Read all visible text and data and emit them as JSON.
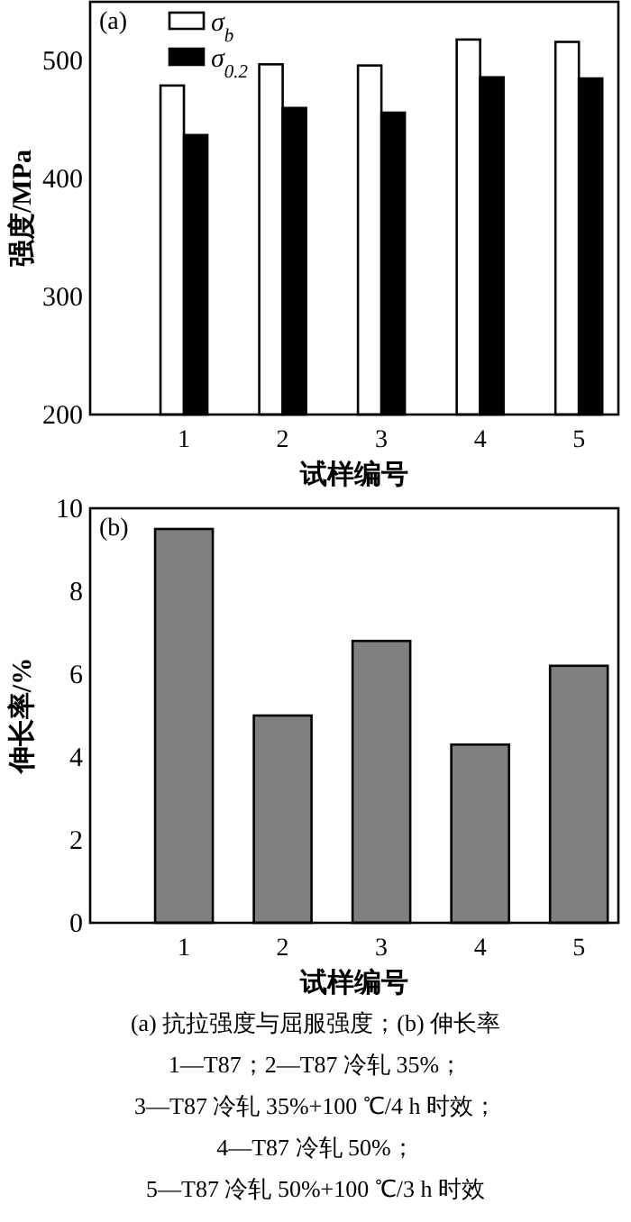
{
  "chart_data": [
    {
      "type": "bar",
      "title": "(a)",
      "ylabel": "强度/MPa",
      "xlabel": "试样编号",
      "categories": [
        "1",
        "2",
        "3",
        "4",
        "5"
      ],
      "ylim": [
        200,
        550
      ],
      "yticks": [
        200,
        300,
        400,
        500
      ],
      "legend": "top",
      "grid": false,
      "series": [
        {
          "name": "σ$_{b}$",
          "color": "#ffffff",
          "values": [
            479,
            497,
            496,
            518,
            516
          ]
        },
        {
          "name": "σ$_{0.2}$",
          "color": "#000000",
          "values": [
            437,
            460,
            456,
            486,
            485
          ]
        }
      ]
    },
    {
      "type": "bar",
      "title": "(b)",
      "ylabel": "伸长率/%",
      "xlabel": "试样编号",
      "categories": [
        "1",
        "2",
        "3",
        "4",
        "5"
      ],
      "ylim": [
        0,
        10
      ],
      "yticks": [
        0,
        2,
        4,
        6,
        8,
        10
      ],
      "legend": false,
      "grid": false,
      "series": [
        {
          "color": "#808080",
          "values": [
            9.5,
            5.0,
            6.8,
            4.3,
            6.2
          ]
        }
      ],
      "annotations": [
        "(a) 抗拉强度与屈服强度；(b) 伸长率",
        "1—T87；2—T87 冷轧 35%；",
        "3—T87 冷轧 35%+100 ℃/4 h 时效；",
        "4—T87 冷轧 50%；",
        "5—T87 冷轧 50%+100 ℃/3 h 时效"
      ]
    }
  ]
}
